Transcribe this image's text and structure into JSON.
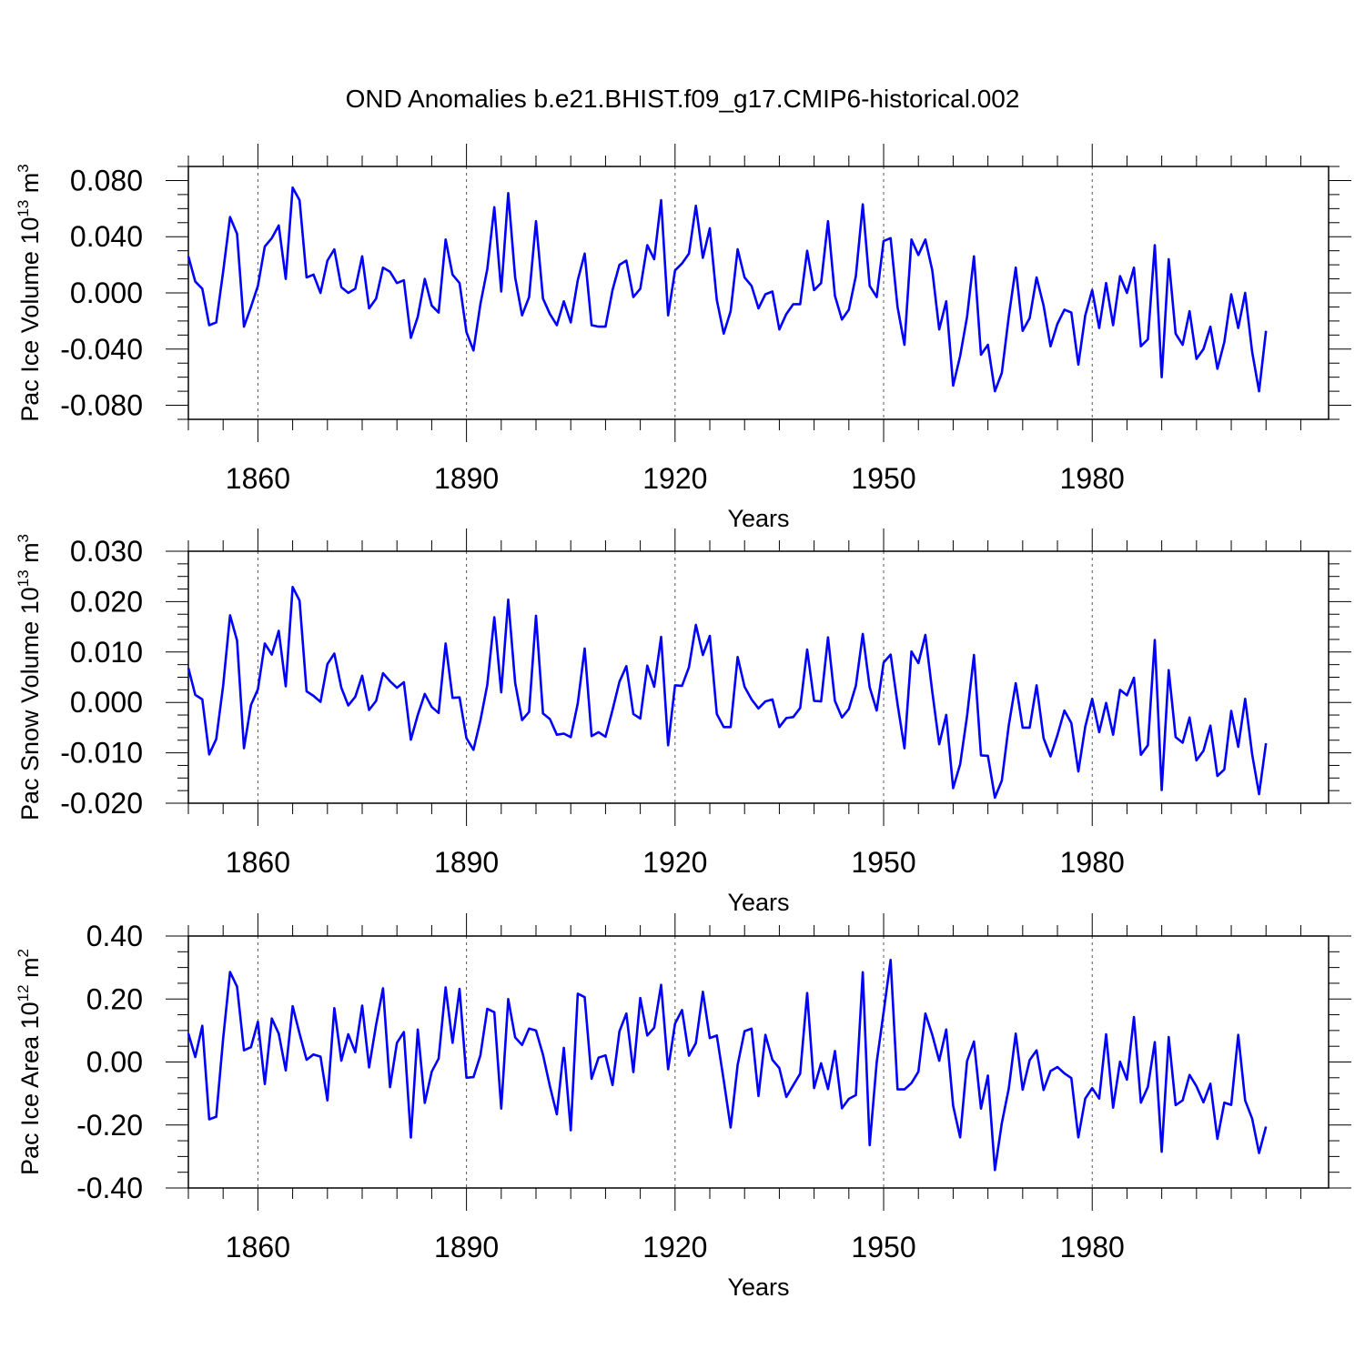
{
  "figure": {
    "title": "OND Anomalies b.e21.BHIST.f09_g17.CMIP6-historical.002"
  },
  "chart_data": [
    {
      "type": "line",
      "ylabel": "Pac Ice Volume 10",
      "ylabel_exp": "13",
      "ylabel_unit": " m",
      "ylabel_unit_exp": "3",
      "xlabel": "Years",
      "xlim": [
        1850,
        2014
      ],
      "ylim": [
        -0.09,
        0.09
      ],
      "xticks": [
        1860,
        1890,
        1920,
        1950,
        1980
      ],
      "xtick_labels": [
        "1860",
        "1890",
        "1920",
        "1950",
        "1980"
      ],
      "yticks": [
        -0.08,
        -0.04,
        0.0,
        0.04,
        0.08
      ],
      "ytick_labels": [
        "-0.080",
        "-0.040",
        "0.000",
        "0.040",
        "0.080"
      ],
      "line_color": "#0000ff",
      "series": [
        {
          "name": "Pac Ice Volume",
          "x_start": 1850,
          "values": [
            0.026,
            0.008,
            0.003,
            -0.023,
            -0.021,
            0.015,
            0.054,
            0.042,
            -0.024,
            -0.01,
            0.005,
            0.033,
            0.039,
            0.048,
            0.01,
            0.075,
            0.066,
            0.011,
            0.013,
            0.0,
            0.023,
            0.031,
            0.004,
            0.0,
            0.003,
            0.026,
            -0.011,
            -0.004,
            0.018,
            0.015,
            0.007,
            0.009,
            -0.032,
            -0.017,
            0.01,
            -0.009,
            -0.014,
            0.038,
            0.013,
            0.007,
            -0.028,
            -0.041,
            -0.008,
            0.017,
            0.061,
            0.001,
            0.071,
            0.011,
            -0.016,
            -0.003,
            0.051,
            -0.004,
            -0.015,
            -0.023,
            -0.006,
            -0.021,
            0.009,
            0.028,
            -0.023,
            -0.024,
            -0.024,
            0.002,
            0.02,
            0.023,
            -0.003,
            0.003,
            0.034,
            0.024,
            0.066,
            -0.016,
            0.016,
            0.021,
            0.028,
            0.062,
            0.025,
            0.046,
            -0.005,
            -0.029,
            -0.013,
            0.031,
            0.011,
            0.005,
            -0.011,
            -0.001,
            0.001,
            -0.026,
            -0.015,
            -0.008,
            -0.008,
            0.03,
            0.002,
            0.007,
            0.051,
            -0.002,
            -0.019,
            -0.012,
            0.012,
            0.063,
            0.005,
            -0.003,
            0.037,
            0.039,
            -0.01,
            -0.037,
            0.038,
            0.027,
            0.038,
            0.016,
            -0.026,
            -0.006,
            -0.066,
            -0.045,
            -0.017,
            0.026,
            -0.044,
            -0.037,
            -0.07,
            -0.057,
            -0.017,
            0.018,
            -0.027,
            -0.018,
            0.011,
            -0.009,
            -0.038,
            -0.022,
            -0.012,
            -0.014,
            -0.051,
            -0.016,
            0.002,
            -0.025,
            0.007,
            -0.023,
            0.012,
            0.0,
            0.018,
            -0.038,
            -0.033,
            0.034,
            -0.06,
            0.024,
            -0.029,
            -0.037,
            -0.013,
            -0.047,
            -0.04,
            -0.024,
            -0.054,
            -0.035,
            -0.001,
            -0.025,
            0.0,
            -0.042,
            -0.07,
            -0.027
          ]
        }
      ]
    },
    {
      "type": "line",
      "ylabel": "Pac Snow Volume 10",
      "ylabel_exp": "13",
      "ylabel_unit": " m",
      "ylabel_unit_exp": "3",
      "xlabel": "Years",
      "xlim": [
        1850,
        2014
      ],
      "ylim": [
        -0.02,
        0.03
      ],
      "xticks": [
        1860,
        1890,
        1920,
        1950,
        1980
      ],
      "xtick_labels": [
        "1860",
        "1890",
        "1920",
        "1950",
        "1980"
      ],
      "yticks": [
        -0.02,
        -0.01,
        0.0,
        0.01,
        0.02,
        0.03
      ],
      "ytick_labels": [
        "-0.020",
        "-0.010",
        "0.000",
        "0.010",
        "0.020",
        "0.030"
      ],
      "line_color": "#0000ff",
      "series": [
        {
          "name": "Pac Snow Volume",
          "x_start": 1850,
          "values": [
            0.0068,
            0.0015,
            0.0006,
            -0.0103,
            -0.0073,
            0.0033,
            0.0173,
            0.0123,
            -0.0091,
            -0.0005,
            0.0026,
            0.0117,
            0.0095,
            0.0142,
            0.0032,
            0.0229,
            0.0202,
            0.0022,
            0.0013,
            0.0001,
            0.0076,
            0.0097,
            0.0029,
            -0.0006,
            0.0011,
            0.0053,
            -0.0015,
            0.0003,
            0.0058,
            0.0042,
            0.0029,
            0.004,
            -0.0074,
            -0.0025,
            0.0017,
            -0.0009,
            -0.0021,
            0.0117,
            0.0009,
            0.001,
            -0.0071,
            -0.0094,
            -0.0036,
            0.0035,
            0.0169,
            0.002,
            0.0204,
            0.0039,
            -0.0035,
            -0.0019,
            0.0172,
            -0.0022,
            -0.0033,
            -0.0064,
            -0.0062,
            -0.0069,
            -0.0002,
            0.0107,
            -0.0067,
            -0.0059,
            -0.0068,
            -0.0015,
            0.0041,
            0.0072,
            -0.0023,
            -0.0032,
            0.0073,
            0.0031,
            0.013,
            -0.0085,
            0.0034,
            0.0033,
            0.007,
            0.0154,
            0.0094,
            0.0132,
            -0.0023,
            -0.0049,
            -0.0049,
            0.009,
            0.0031,
            0.0006,
            -0.0012,
            0.0002,
            0.0006,
            -0.0049,
            -0.0031,
            -0.0029,
            -0.0011,
            0.0105,
            0.0003,
            0.0002,
            0.0129,
            0.0003,
            -0.003,
            -0.0013,
            0.0033,
            0.0136,
            0.003,
            -0.0016,
            0.0079,
            0.0095,
            -0.0003,
            -0.0091,
            0.0101,
            0.0078,
            0.0134,
            0.0021,
            -0.0083,
            -0.0025,
            -0.017,
            -0.0123,
            -0.0027,
            0.0094,
            -0.0105,
            -0.0106,
            -0.0189,
            -0.0155,
            -0.0046,
            0.0038,
            -0.005,
            -0.005,
            0.0034,
            -0.0071,
            -0.0107,
            -0.0065,
            -0.0016,
            -0.0041,
            -0.0137,
            -0.0048,
            0.0007,
            -0.0059,
            -0.0001,
            -0.0064,
            0.0025,
            0.0014,
            0.0049,
            -0.0104,
            -0.0085,
            0.0124,
            -0.0174,
            0.0064,
            -0.0069,
            -0.008,
            -0.003,
            -0.0115,
            -0.0096,
            -0.0046,
            -0.0146,
            -0.0133,
            -0.0017,
            -0.0088,
            0.0007,
            -0.0103,
            -0.0182,
            -0.0081
          ]
        }
      ]
    },
    {
      "type": "line",
      "ylabel": "Pac Ice Area 10",
      "ylabel_exp": "12",
      "ylabel_unit": " m",
      "ylabel_unit_exp": "2",
      "xlabel": "Years",
      "xlim": [
        1850,
        2014
      ],
      "ylim": [
        -0.4,
        0.4
      ],
      "xticks": [
        1860,
        1890,
        1920,
        1950,
        1980
      ],
      "xtick_labels": [
        "1860",
        "1890",
        "1920",
        "1950",
        "1980"
      ],
      "yticks": [
        -0.4,
        -0.2,
        0.0,
        0.2,
        0.4
      ],
      "ytick_labels": [
        "-0.40",
        "-0.20",
        "0.00",
        "0.20",
        "0.40"
      ],
      "line_color": "#0000ff",
      "series": [
        {
          "name": "Pac Ice Area",
          "x_start": 1850,
          "values": [
            0.09,
            0.016,
            0.115,
            -0.182,
            -0.174,
            0.074,
            0.286,
            0.239,
            0.037,
            0.047,
            0.128,
            -0.07,
            0.138,
            0.09,
            -0.027,
            0.177,
            0.09,
            0.007,
            0.024,
            0.017,
            -0.122,
            0.171,
            0.004,
            0.088,
            0.031,
            0.179,
            -0.017,
            0.118,
            0.234,
            -0.08,
            0.061,
            0.095,
            -0.24,
            0.103,
            -0.13,
            -0.031,
            0.011,
            0.237,
            0.061,
            0.232,
            -0.05,
            -0.048,
            0.021,
            0.169,
            0.158,
            -0.148,
            0.2,
            0.078,
            0.054,
            0.106,
            0.1,
            0.023,
            -0.077,
            -0.166,
            0.045,
            -0.217,
            0.217,
            0.206,
            -0.053,
            0.014,
            0.021,
            -0.073,
            0.097,
            0.154,
            -0.032,
            0.203,
            0.084,
            0.109,
            0.245,
            -0.023,
            0.122,
            0.165,
            0.02,
            0.06,
            0.223,
            0.076,
            0.084,
            -0.058,
            -0.208,
            -0.009,
            0.098,
            0.106,
            -0.108,
            0.086,
            0.007,
            -0.019,
            -0.111,
            -0.074,
            -0.037,
            0.219,
            -0.083,
            -0.004,
            -0.086,
            0.035,
            -0.147,
            -0.117,
            -0.105,
            0.285,
            -0.264,
            -0.001,
            0.158,
            0.324,
            -0.087,
            -0.087,
            -0.067,
            -0.031,
            0.154,
            0.086,
            0.004,
            0.103,
            -0.139,
            -0.239,
            0.003,
            0.065,
            -0.148,
            -0.043,
            -0.343,
            -0.194,
            -0.085,
            0.09,
            -0.088,
            0.006,
            0.037,
            -0.089,
            -0.029,
            -0.016,
            -0.036,
            -0.051,
            -0.239,
            -0.116,
            -0.083,
            -0.116,
            0.088,
            -0.145,
            0.001,
            -0.056,
            0.143,
            -0.129,
            -0.079,
            0.063,
            -0.285,
            0.079,
            -0.137,
            -0.122,
            -0.041,
            -0.077,
            -0.128,
            -0.069,
            -0.244,
            -0.129,
            -0.136,
            0.086,
            -0.122,
            -0.18,
            -0.289,
            -0.205
          ]
        }
      ]
    }
  ]
}
